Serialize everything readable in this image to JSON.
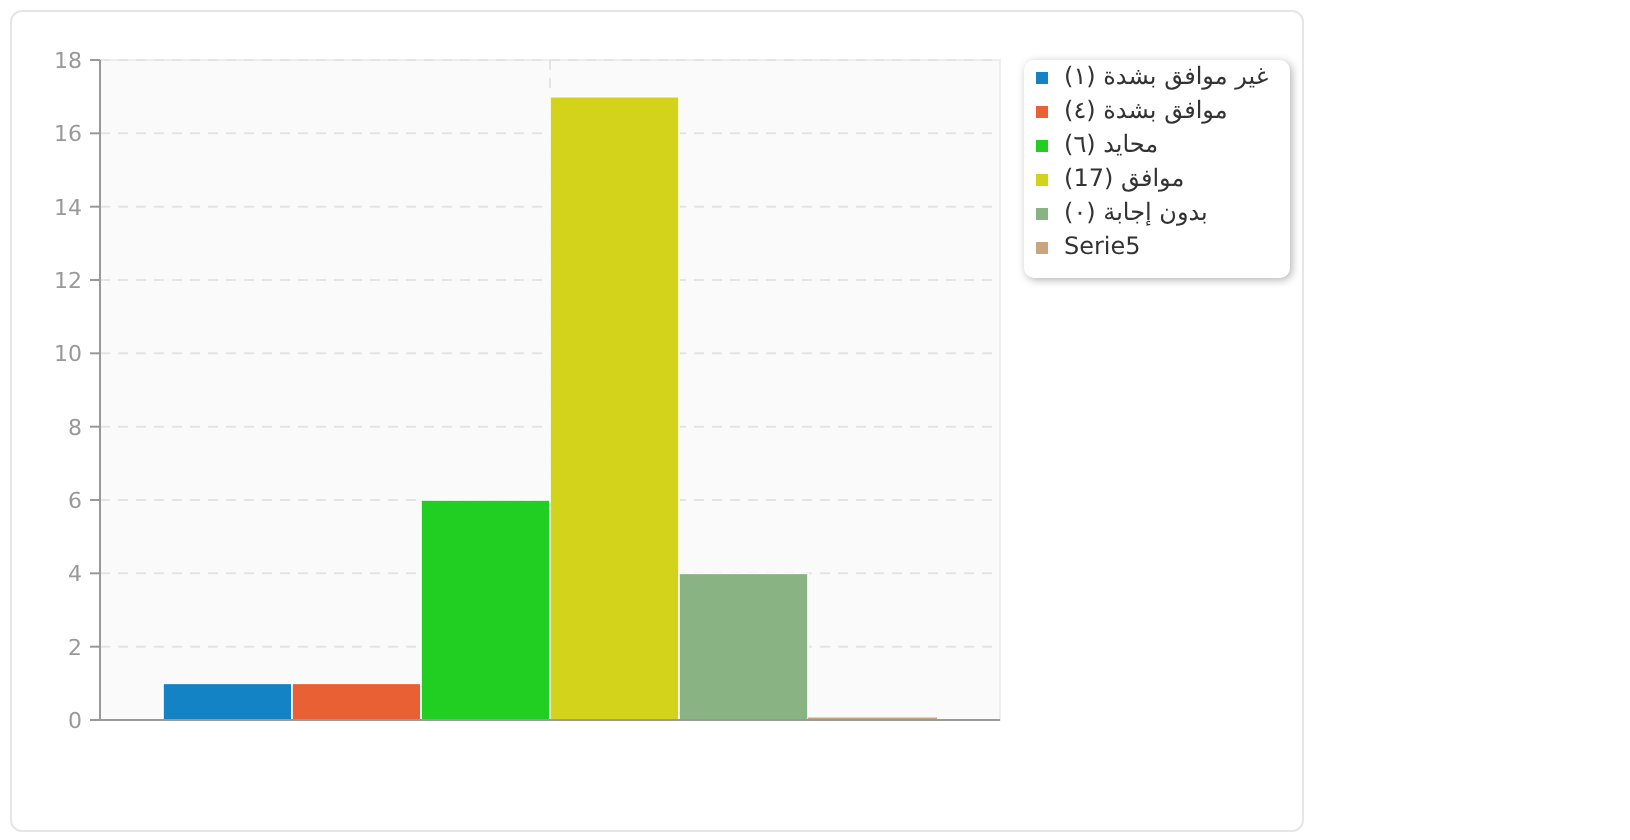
{
  "chart_data": {
    "type": "bar",
    "categories": [
      null
    ],
    "series": [
      {
        "name": "غير موافق بشدة (١)",
        "color": "#1383c6",
        "values": [
          1
        ]
      },
      {
        "name": "موافق بشدة (٤)",
        "color": "#e86034",
        "values": [
          1
        ]
      },
      {
        "name": "محايد (٦)",
        "color": "#20cf22",
        "values": [
          6
        ]
      },
      {
        "name": "موافق (17)",
        "color": "#d3d31c",
        "values": [
          17
        ]
      },
      {
        "name": "بدون إجابة (٠)",
        "color": "#8ab383",
        "values": [
          4
        ]
      },
      {
        "name": "Serie5",
        "color": "#c8a57f",
        "values": [
          0
        ]
      }
    ],
    "ylim": [
      0,
      18
    ],
    "yticks": [
      0,
      2,
      4,
      6,
      8,
      10,
      12,
      14,
      16,
      18
    ],
    "grid": true,
    "legend": "right"
  }
}
